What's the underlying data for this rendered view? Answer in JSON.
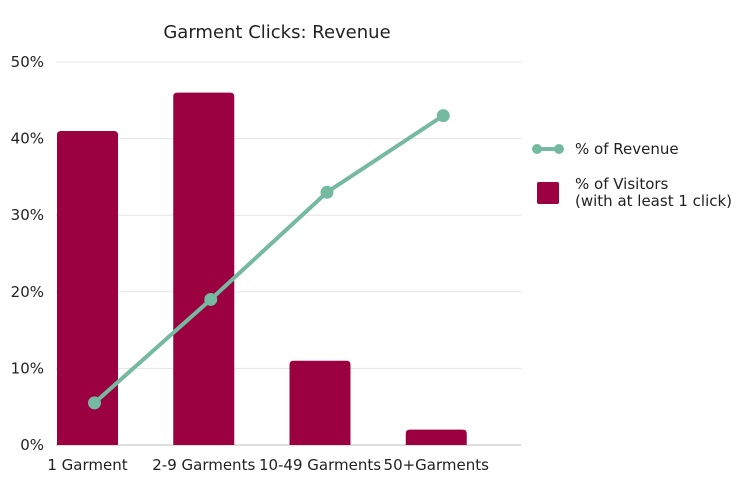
{
  "chart_data": {
    "type": "bar",
    "title": "Garment Clicks: Revenue",
    "categories": [
      "1 Garment",
      "2-9 Garments",
      "10-49 Garments",
      "50+Garments"
    ],
    "series": [
      {
        "name": "% of Visitors (with at least 1 click)",
        "legend_lines": [
          "% of Visitors",
          "(with at least 1 click)"
        ],
        "type": "bar",
        "color": "#9b0040",
        "values": [
          41,
          46,
          11,
          2
        ]
      },
      {
        "name": "% of Revenue",
        "type": "line",
        "color": "#74b9a0",
        "values": [
          5.5,
          19,
          33,
          43
        ]
      }
    ],
    "y_ticks": [
      "0%",
      "10%",
      "20%",
      "30%",
      "40%",
      "50%"
    ],
    "ylim": [
      0,
      50
    ],
    "grid": true,
    "legend_position": "right"
  }
}
